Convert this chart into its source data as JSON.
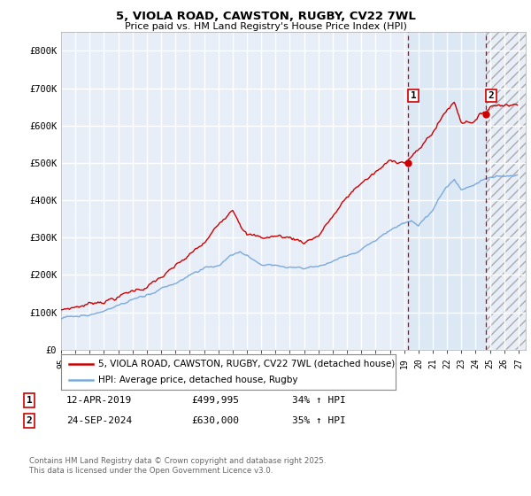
{
  "title_line1": "5, VIOLA ROAD, CAWSTON, RUGBY, CV22 7WL",
  "title_line2": "Price paid vs. HM Land Registry's House Price Index (HPI)",
  "ylim": [
    0,
    850000
  ],
  "yticks": [
    0,
    100000,
    200000,
    300000,
    400000,
    500000,
    600000,
    700000,
    800000
  ],
  "ytick_labels": [
    "£0",
    "£100K",
    "£200K",
    "£300K",
    "£400K",
    "£500K",
    "£600K",
    "£700K",
    "£800K"
  ],
  "xlim_start": 1995.0,
  "xlim_end": 2027.5,
  "xtick_years": [
    1995,
    1996,
    1997,
    1998,
    1999,
    2000,
    2001,
    2002,
    2003,
    2004,
    2005,
    2006,
    2007,
    2008,
    2009,
    2010,
    2011,
    2012,
    2013,
    2014,
    2015,
    2016,
    2017,
    2018,
    2019,
    2020,
    2021,
    2022,
    2023,
    2024,
    2025,
    2026,
    2027
  ],
  "background_color": "#e8eef8",
  "grid_color": "#ffffff",
  "red_color": "#cc0000",
  "blue_color": "#7aaadd",
  "sale1_x": 2019.28,
  "sale1_y": 499995,
  "sale2_x": 2024.73,
  "sale2_y": 630000,
  "legend_label_red": "5, VIOLA ROAD, CAWSTON, RUGBY, CV22 7WL (detached house)",
  "legend_label_blue": "HPI: Average price, detached house, Rugby",
  "annotation1_date": "12-APR-2019",
  "annotation1_price": "£499,995",
  "annotation1_hpi": "34% ↑ HPI",
  "annotation2_date": "24-SEP-2024",
  "annotation2_price": "£630,000",
  "annotation2_hpi": "35% ↑ HPI",
  "footer": "Contains HM Land Registry data © Crown copyright and database right 2025.\nThis data is licensed under the Open Government Licence v3.0."
}
